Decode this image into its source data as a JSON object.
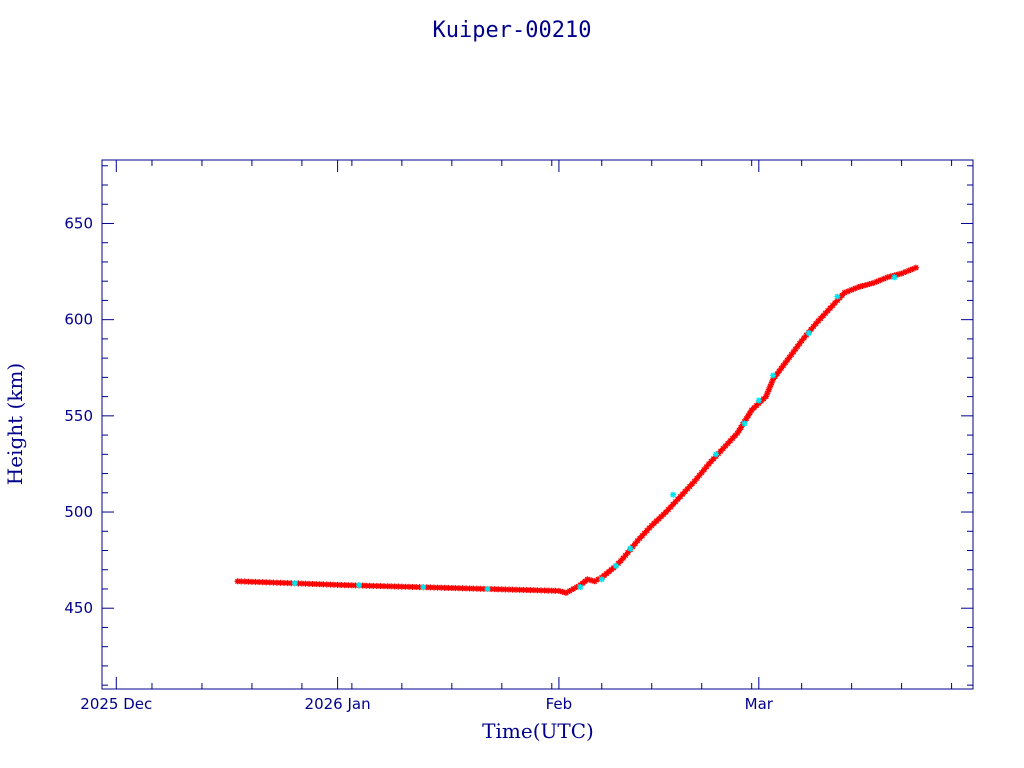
{
  "chart_data": {
    "type": "scatter",
    "title": "Kuiper-00210",
    "xlabel": "Time(UTC)",
    "ylabel": "Height (km)",
    "x_axis": "date",
    "xlim": [
      "2025-11-29",
      "2026-03-31"
    ],
    "ylim": [
      408,
      683
    ],
    "x_tick_labels": [
      {
        "date": "2025-12-01",
        "label": "2025 Dec"
      },
      {
        "date": "2026-01-01",
        "label": "2026 Jan"
      },
      {
        "date": "2026-02-01",
        "label": "Feb"
      },
      {
        "date": "2026-03-01",
        "label": "Mar"
      }
    ],
    "y_ticks": [
      450,
      500,
      550,
      600,
      650
    ],
    "grid": false,
    "legend": "none",
    "colors": {
      "axis": "#00008b",
      "series_1": "#ff0000",
      "series_2": "#00e5ee"
    },
    "series": [
      {
        "marker": "star",
        "color": "#ff0000",
        "points": [
          [
            "2025-12-18",
            464
          ],
          [
            "2025-12-21",
            463.6
          ],
          [
            "2025-12-24",
            463.2
          ],
          [
            "2025-12-27",
            462.8
          ],
          [
            "2025-12-30",
            462.4
          ],
          [
            "2026-01-02",
            462
          ],
          [
            "2026-01-05",
            461.7
          ],
          [
            "2026-01-08",
            461.4
          ],
          [
            "2026-01-11",
            461.1
          ],
          [
            "2026-01-14",
            460.8
          ],
          [
            "2026-01-17",
            460.5
          ],
          [
            "2026-01-20",
            460.2
          ],
          [
            "2026-01-23",
            459.9
          ],
          [
            "2026-01-26",
            459.6
          ],
          [
            "2026-01-29",
            459.3
          ],
          [
            "2026-02-01",
            459
          ],
          [
            "2026-02-02",
            458
          ],
          [
            "2026-02-03",
            460
          ],
          [
            "2026-02-04",
            462
          ],
          [
            "2026-02-05",
            465
          ],
          [
            "2026-02-06",
            464
          ],
          [
            "2026-02-07",
            466
          ],
          [
            "2026-02-08",
            469
          ],
          [
            "2026-02-09",
            472
          ],
          [
            "2026-02-10",
            476
          ],
          [
            "2026-02-12",
            485
          ],
          [
            "2026-02-14",
            493
          ],
          [
            "2026-02-16",
            500
          ],
          [
            "2026-02-18",
            508
          ],
          [
            "2026-02-20",
            516
          ],
          [
            "2026-02-22",
            525
          ],
          [
            "2026-02-24",
            533
          ],
          [
            "2026-02-26",
            541
          ],
          [
            "2026-02-28",
            553
          ],
          [
            "2026-03-02",
            560
          ],
          [
            "2026-03-03",
            569
          ],
          [
            "2026-03-05",
            579
          ],
          [
            "2026-03-07",
            589
          ],
          [
            "2026-03-09",
            598
          ],
          [
            "2026-03-11",
            606
          ],
          [
            "2026-03-13",
            614
          ],
          [
            "2026-03-15",
            617
          ],
          [
            "2026-03-17",
            619
          ],
          [
            "2026-03-19",
            622
          ],
          [
            "2026-03-21",
            624
          ],
          [
            "2026-03-23",
            627
          ]
        ]
      },
      {
        "marker": "star",
        "color": "#00e5ee",
        "points": [
          [
            "2025-12-26",
            463
          ],
          [
            "2026-01-04",
            462
          ],
          [
            "2026-01-13",
            461
          ],
          [
            "2026-01-22",
            460
          ],
          [
            "2026-02-04",
            461
          ],
          [
            "2026-02-07",
            465
          ],
          [
            "2026-02-09",
            472
          ],
          [
            "2026-02-11",
            481
          ],
          [
            "2026-02-17",
            509
          ],
          [
            "2026-02-23",
            530
          ],
          [
            "2026-02-27",
            546
          ],
          [
            "2026-03-01",
            558
          ],
          [
            "2026-03-03",
            571
          ],
          [
            "2026-03-08",
            593
          ],
          [
            "2026-03-12",
            612
          ],
          [
            "2026-03-20",
            622
          ]
        ]
      }
    ]
  }
}
